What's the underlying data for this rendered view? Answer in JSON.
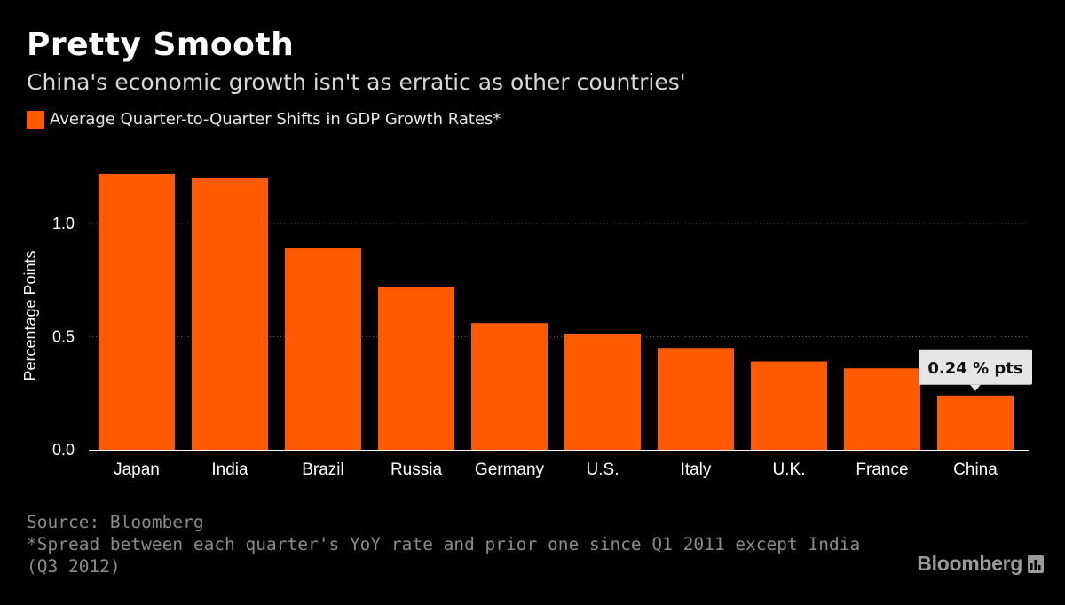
{
  "header": {
    "title": "Pretty Smooth",
    "subtitle": "China's economic growth isn't as erratic as other countries'"
  },
  "colors": {
    "bar": "#ff5a00",
    "background": "#000000",
    "axis_text": "#ffffff",
    "grid": "#555555",
    "callout_bg": "#e6e6e6",
    "callout_text": "#111111"
  },
  "chart_data": {
    "type": "bar",
    "ylabel": "Percentage Points",
    "xlabel": "",
    "ylim": [
      0,
      1.25
    ],
    "yticks": [
      0.0,
      0.5,
      1.0
    ],
    "ytick_labels": [
      "0.0",
      "0.5",
      "1.0"
    ],
    "grid": true,
    "series": [
      {
        "name": "Average Quarter-to-Quarter Shifts in GDP Growth Rates*",
        "values": [
          1.22,
          1.2,
          0.89,
          0.72,
          0.56,
          0.51,
          0.45,
          0.39,
          0.36,
          0.24
        ]
      }
    ],
    "categories": [
      "Japan",
      "India",
      "Brazil",
      "Russia",
      "Germany",
      "U.S.",
      "Italy",
      "U.K.",
      "France",
      "China"
    ],
    "annotation": {
      "category": "China",
      "text": "0.24 % pts"
    }
  },
  "footer": {
    "source": "Source: Bloomberg",
    "note": "*Spread between each quarter's YoY rate and prior one since Q1 2011 except India (Q3 2012)",
    "brand": "Bloomberg"
  }
}
